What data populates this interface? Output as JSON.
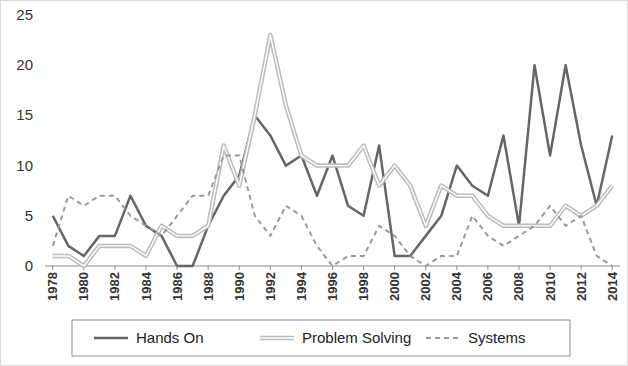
{
  "chart_data": {
    "type": "line",
    "x": [
      1978,
      1979,
      1980,
      1981,
      1982,
      1983,
      1984,
      1985,
      1986,
      1987,
      1988,
      1989,
      1990,
      1991,
      1992,
      1993,
      1994,
      1995,
      1996,
      1997,
      1998,
      1999,
      2000,
      2001,
      2002,
      2003,
      2004,
      2005,
      2006,
      2007,
      2008,
      2009,
      2010,
      2011,
      2012,
      2013,
      2014
    ],
    "series": [
      {
        "name": "Hands On",
        "color": "#666666",
        "line_style": "solid",
        "values": [
          5,
          2,
          1,
          3,
          3,
          7,
          4,
          3,
          0,
          0,
          4,
          7,
          9,
          15,
          13,
          10,
          11,
          7,
          11,
          6,
          5,
          12,
          1,
          1,
          3,
          5,
          10,
          8,
          7,
          13,
          4,
          20,
          11,
          20,
          12,
          6,
          13
        ]
      },
      {
        "name": "Problem Solving",
        "color": "#bdbdbd",
        "line_style": "double",
        "values": [
          1,
          1,
          0,
          2,
          2,
          2,
          1,
          4,
          3,
          3,
          4,
          12,
          8,
          15,
          23,
          16,
          11,
          10,
          10,
          10,
          12,
          8,
          10,
          8,
          4,
          8,
          7,
          7,
          5,
          4,
          4,
          4,
          4,
          6,
          5,
          6,
          8
        ]
      },
      {
        "name": "Systems",
        "color": "#9a9a9a",
        "line_style": "dashed",
        "values": [
          2,
          7,
          6,
          7,
          7,
          5,
          4,
          3,
          5,
          7,
          7,
          11,
          11,
          5,
          3,
          6,
          5,
          2,
          0,
          1,
          1,
          4,
          3,
          1,
          0,
          1,
          1,
          5,
          3,
          2,
          3,
          4,
          6,
          4,
          5,
          1,
          0
        ]
      }
    ],
    "xlim": [
      1977.5,
      2014.5
    ],
    "xticks": [
      1978,
      1980,
      1982,
      1984,
      1986,
      1988,
      1990,
      1992,
      1994,
      1996,
      1998,
      2000,
      2002,
      2004,
      2006,
      2008,
      2010,
      2012,
      2014
    ],
    "ylim": [
      0,
      25
    ],
    "yticks": [
      0,
      5,
      10,
      15,
      20,
      25
    ],
    "grid": false,
    "legend": "bottom"
  }
}
